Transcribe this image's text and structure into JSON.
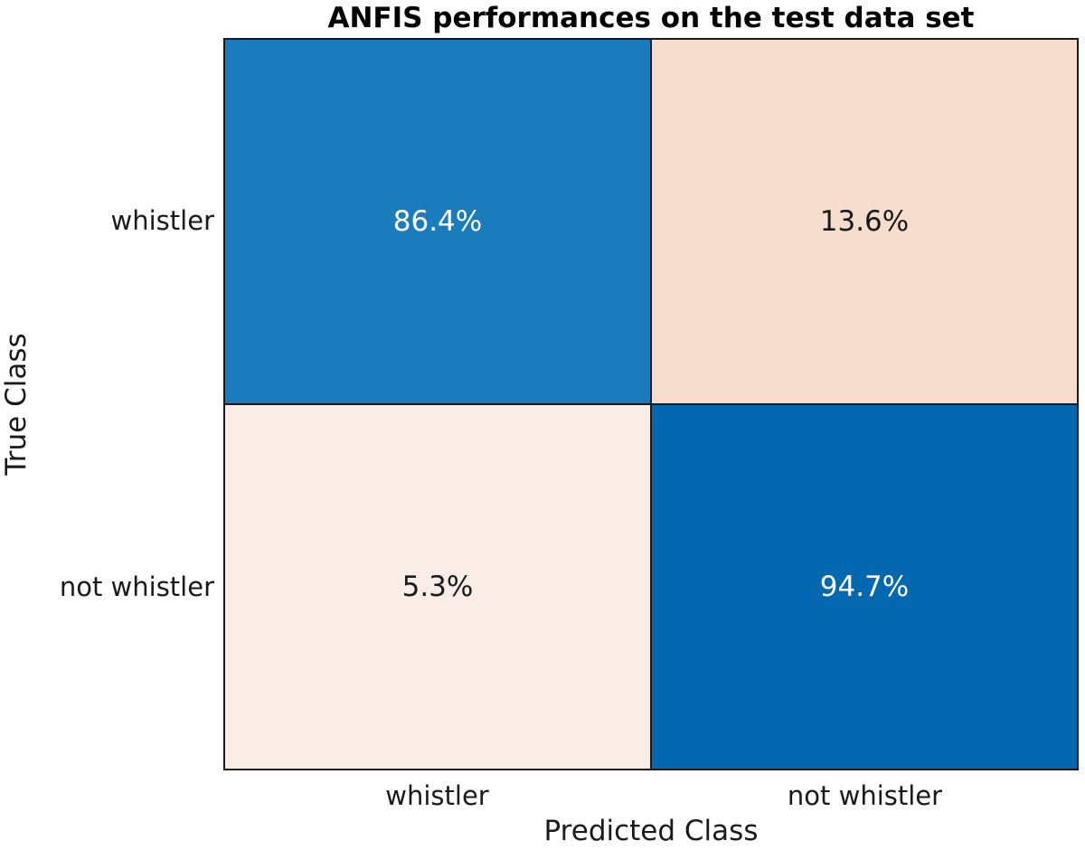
{
  "chart_data": {
    "type": "heatmap",
    "title": "ANFIS performances on the test data set",
    "xlabel": "Predicted Class",
    "ylabel": "True Class",
    "x_categories": [
      "whistler",
      "not whistler"
    ],
    "y_categories": [
      "whistler",
      "not whistler"
    ],
    "values": [
      [
        86.4,
        13.6
      ],
      [
        5.3,
        94.7
      ]
    ],
    "cells": [
      {
        "row": "whistler",
        "col": "whistler",
        "value": 86.4,
        "label": "86.4%",
        "bg": "#1b7cbd",
        "fg": "#ffffff"
      },
      {
        "row": "whistler",
        "col": "not whistler",
        "value": 13.6,
        "label": "13.6%",
        "bg": "#f7ddcd",
        "fg": "#1a1a1a"
      },
      {
        "row": "not whistler",
        "col": "whistler",
        "value": 5.3,
        "label": "5.3%",
        "bg": "#faede8",
        "fg": "#1a1a1a"
      },
      {
        "row": "not whistler",
        "col": "not whistler",
        "value": 94.7,
        "label": "94.7%",
        "bg": "#0368af",
        "fg": "#ffffff"
      }
    ],
    "colors": {
      "diagonal_strong": "#0368af",
      "diagonal_medium": "#1b7cbd",
      "offdiagonal_medium": "#f7ddcd",
      "offdiagonal_light": "#faede8",
      "axes_border": "#1a1a1a",
      "text": "#1a1a1a",
      "title_text": "#000000",
      "background": "#ffffff"
    },
    "legend": "none",
    "grid": false
  }
}
